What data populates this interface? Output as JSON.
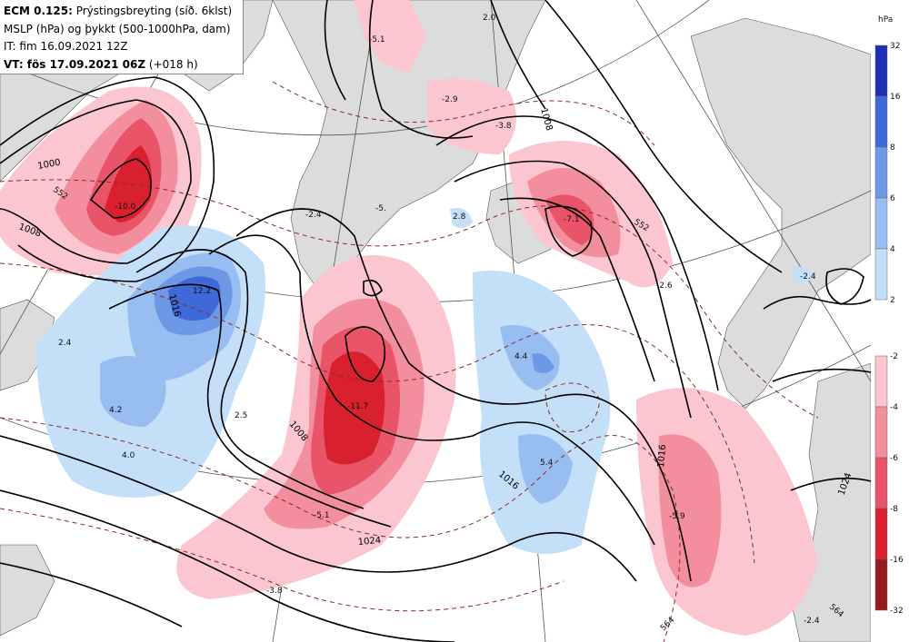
{
  "header": {
    "line1_bold": "ECM 0.125:",
    "line1_rest": "Prýstingsbreyting (síð. 6klst)",
    "line2": "MSLP (hPa) og þykkt (500-1000hPa, dam)",
    "line3": "IT: fim 16.09.2021 12Z",
    "line4_bold": "VT: fös 17.09.2021 06Z",
    "line4_rest": "(+018 h)"
  },
  "legend": {
    "unit": "hPa",
    "positive": {
      "ticks": [
        "32",
        "16",
        "8",
        "6",
        "4",
        "2"
      ],
      "colors": [
        "#1e2fb4",
        "#3d6ad8",
        "#6d98e6",
        "#98bdf1",
        "#c4e0f9"
      ]
    },
    "negative": {
      "ticks": [
        "-2",
        "-4",
        "-6",
        "-8",
        "-16",
        "-32"
      ],
      "colors": [
        "#fbc6cf",
        "#f28e9e",
        "#e95468",
        "#d9202f",
        "#961b1e"
      ]
    }
  },
  "map": {
    "land_color": "#dcdcdc",
    "isobar_labels": [
      "1000",
      "1008",
      "1016",
      "1008",
      "1016",
      "1024",
      "1008",
      "1016",
      "1024"
    ],
    "thickness_labels": [
      "552",
      "552",
      "564",
      "564"
    ],
    "value_labels": [
      "-5.1",
      "2.0",
      "-2.9",
      "-3.8",
      "-10.0",
      "-2.4",
      "-5.",
      "2.8",
      "-7.1",
      "12.2",
      "2.4",
      "-2.6",
      "-11.7",
      "4.4",
      "2.5",
      "4.2",
      "4.0",
      "5.4",
      "-5.1",
      "-5.9",
      "-3.8",
      "-2.4",
      "-2.4"
    ]
  }
}
